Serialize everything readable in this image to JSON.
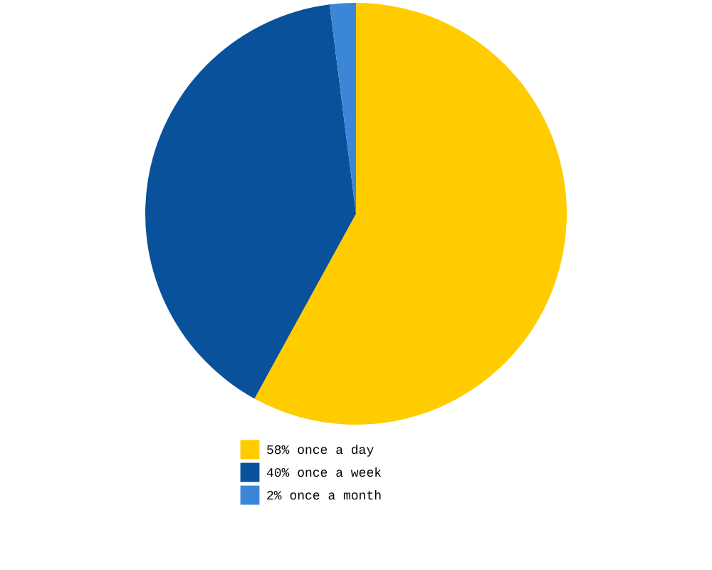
{
  "chart_data": {
    "type": "pie",
    "categories": [
      "58% once a day",
      "40% once a week",
      " 2% once a month"
    ],
    "values": [
      58,
      40,
      2
    ],
    "colors": [
      "#ffcc00",
      "#0a519c",
      "#3b86d6"
    ],
    "legend": "bottom"
  }
}
